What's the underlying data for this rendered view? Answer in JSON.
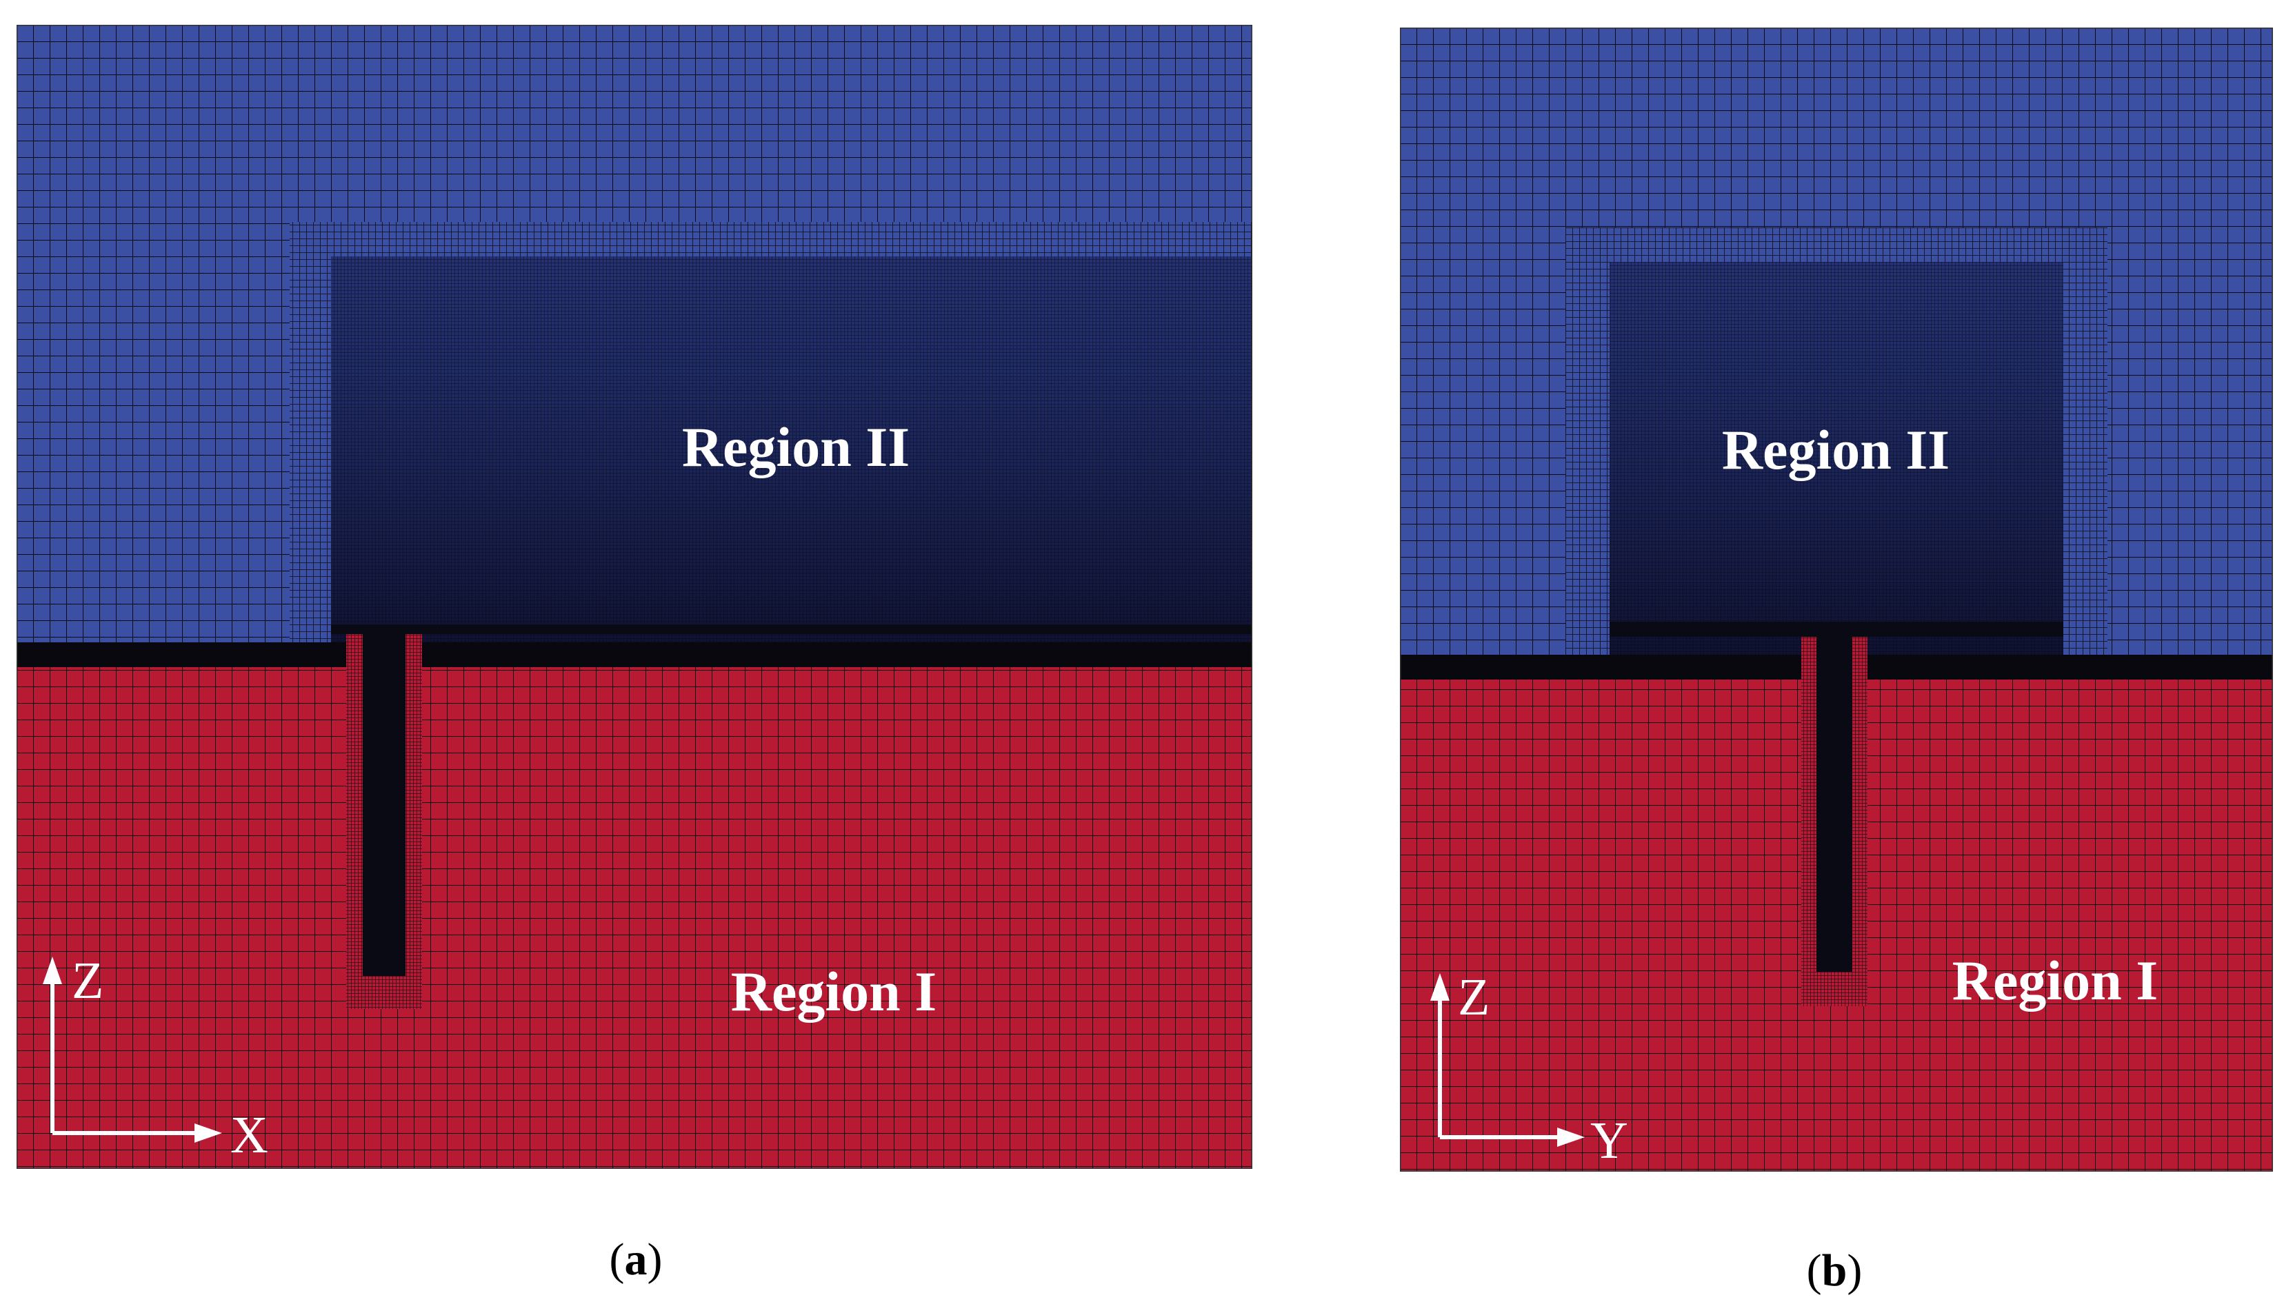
{
  "colors": {
    "air": "#3b4fa3",
    "soil": "#b81a34",
    "mesh_line": "#0a0a14",
    "refined": "#1a2556",
    "label": "#ffffff"
  },
  "panels": [
    {
      "id": "a",
      "caption_letter": "a",
      "region_upper": "Region II",
      "region_lower": "Region I",
      "axis_vertical": "Z",
      "axis_horizontal": "X"
    },
    {
      "id": "b",
      "caption_letter": "b",
      "region_upper": "Region II",
      "region_lower": "Region I",
      "axis_vertical": "Z",
      "axis_horizontal": "Y"
    }
  ]
}
